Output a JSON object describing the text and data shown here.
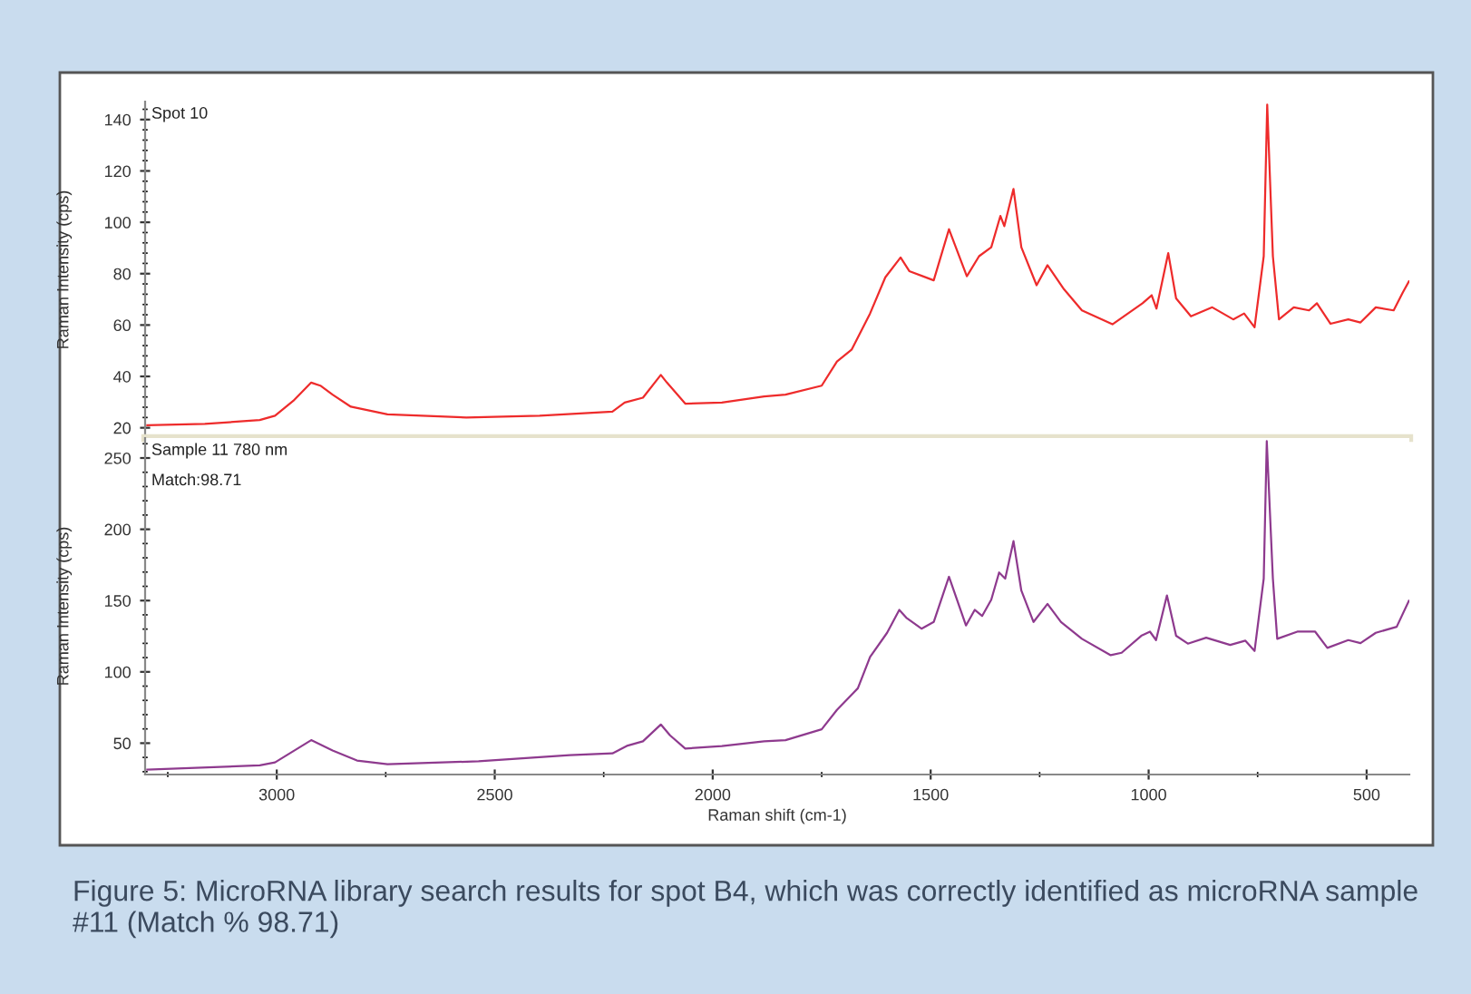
{
  "chart_data": [
    {
      "type": "line",
      "ylabel": "Raman Intensity (cps)",
      "annotations": [
        "Spot 10"
      ],
      "tick_labels": "y",
      "xlim": [
        3302,
        402
      ],
      "ylim": [
        16,
        147
      ],
      "yticks": [
        20,
        40,
        60,
        80,
        100,
        120,
        140
      ],
      "grid": false,
      "legend": false,
      "series": [
        {
          "color": "#ee2b2b",
          "x": [
            3297,
            3165,
            3039,
            3004,
            2962,
            2921,
            2900,
            2872,
            2830,
            2746,
            2565,
            2397,
            2230,
            2202,
            2160,
            2119,
            2105,
            2063,
            1979,
            1882,
            1833,
            1750,
            1715,
            1681,
            1639,
            1604,
            1569,
            1549,
            1493,
            1458,
            1417,
            1389,
            1361,
            1340,
            1331,
            1310,
            1292,
            1257,
            1232,
            1194,
            1153,
            1083,
            1014,
            993,
            982,
            955,
            937,
            903,
            854,
            806,
            781,
            757,
            736,
            728,
            715,
            701,
            667,
            632,
            614,
            583,
            542,
            514,
            479,
            438,
            417,
            403
          ],
          "values": [
            21,
            21.5,
            23,
            24.7,
            30.5,
            37.6,
            36.4,
            32.9,
            28.2,
            25.2,
            24,
            24.7,
            26.3,
            29.8,
            31.7,
            40.6,
            37.6,
            29.4,
            29.8,
            32.2,
            32.9,
            36.4,
            45.8,
            50.5,
            64.5,
            78.6,
            86.3,
            81,
            77.4,
            97.3,
            79,
            86.8,
            90.3,
            102.5,
            98.5,
            113,
            90.3,
            75.5,
            83.3,
            73.9,
            65.7,
            60.3,
            68.5,
            71.6,
            66.4,
            88,
            70.4,
            63.4,
            66.9,
            62.2,
            64.5,
            59.1,
            86.8,
            145.8,
            86.8,
            62.2,
            66.9,
            65.7,
            68.5,
            60.5,
            62.2,
            61,
            66.9,
            65.7,
            72.7,
            77
          ]
        }
      ]
    },
    {
      "type": "line",
      "ylabel": "Raman Intensity (cps)",
      "xlabel": "Raman shift (cm-1)",
      "annotations": [
        "Sample 11 780 nm",
        "Match:98.71",
        "Figure 5: MicroRNA library search results for spot B4, which was correctly identified as microRNA sample #11 (Match % 98.71)"
      ],
      "xlim": [
        3302,
        402
      ],
      "ylim": [
        28,
        264
      ],
      "xticks": [
        3000,
        2500,
        2000,
        1500,
        1000,
        500
      ],
      "yticks": [
        50,
        100,
        150,
        200,
        250
      ],
      "grid": false,
      "legend": false,
      "series": [
        {
          "color": "#8e3a8e",
          "x": [
            3297,
            3039,
            3004,
            2921,
            2872,
            2816,
            2746,
            2537,
            2328,
            2230,
            2195,
            2160,
            2119,
            2098,
            2063,
            1979,
            1882,
            1833,
            1750,
            1715,
            1667,
            1639,
            1600,
            1572,
            1556,
            1521,
            1493,
            1458,
            1419,
            1399,
            1382,
            1361,
            1343,
            1329,
            1310,
            1292,
            1264,
            1232,
            1201,
            1153,
            1087,
            1062,
            1017,
            997,
            983,
            958,
            937,
            910,
            868,
            813,
            778,
            757,
            736,
            729,
            715,
            705,
            659,
            618,
            590,
            542,
            514,
            479,
            431,
            403
          ],
          "values": [
            31.4,
            34.4,
            36.5,
            52.1,
            44.9,
            37.8,
            35.2,
            37.3,
            41.6,
            42.8,
            48.3,
            51.3,
            63.1,
            55.5,
            46.2,
            47.9,
            51.3,
            52.1,
            59.7,
            73.3,
            88.5,
            110.5,
            127.4,
            143.5,
            138,
            130.3,
            135,
            166.7,
            132.5,
            143.5,
            139.2,
            150.6,
            169.7,
            165.4,
            191.7,
            157,
            135,
            147.7,
            135,
            123.2,
            111.7,
            113.4,
            125.3,
            128.2,
            122.3,
            153.6,
            125.3,
            119.8,
            124,
            118.9,
            121.9,
            114.7,
            165.4,
            261.8,
            165.4,
            123.2,
            128.2,
            128.2,
            116.8,
            122.3,
            120.2,
            127.4,
            131.6,
            149.8
          ]
        }
      ]
    }
  ]
}
